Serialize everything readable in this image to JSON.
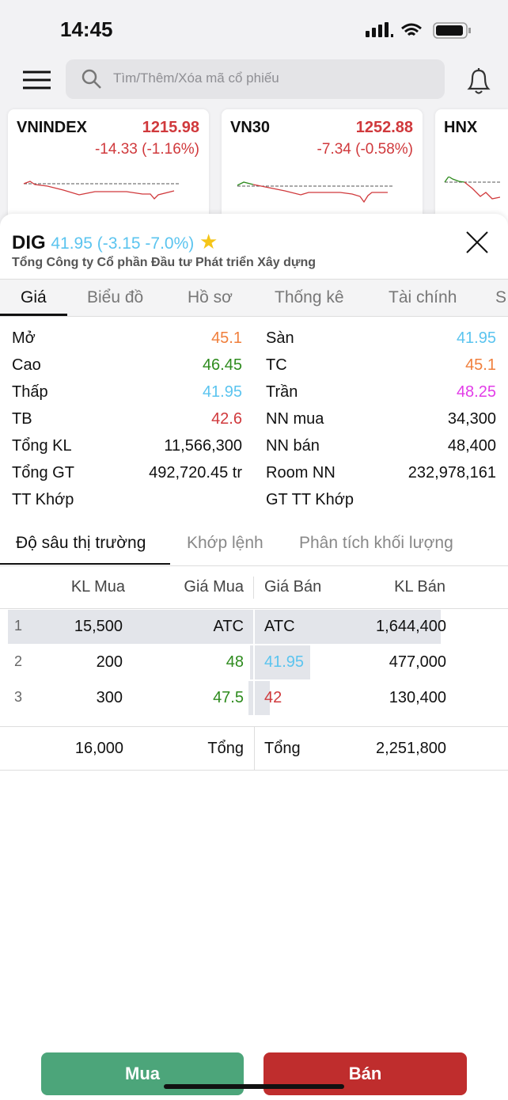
{
  "status": {
    "time": "14:45"
  },
  "search": {
    "placeholder": "Tìm/Thêm/Xóa mã cổ phiếu"
  },
  "indices": [
    {
      "name": "VNINDEX",
      "price": "1215.98",
      "change": "-14.33 (-1.16%)"
    },
    {
      "name": "VN30",
      "price": "1252.88",
      "change": "-7.34 (-0.58%)"
    },
    {
      "name": "HNX"
    }
  ],
  "stock": {
    "symbol": "DIG",
    "quote": "41.95 (-3.15 -7.0%)",
    "company": "Tổng Công ty Cổ phần Đầu tư Phát triển Xây dựng"
  },
  "tabs": [
    "Giá",
    "Biểu đồ",
    "Hồ sơ",
    "Thống kê",
    "Tài chính",
    "S"
  ],
  "info_left": [
    {
      "label": "Mở",
      "value": "45.1",
      "color": "#f07f3c"
    },
    {
      "label": "Cao",
      "value": "46.45",
      "color": "#2e8b1e"
    },
    {
      "label": "Thấp",
      "value": "41.95",
      "color": "#5bc4ef"
    },
    {
      "label": "TB",
      "value": "42.6",
      "color": "#d0393c"
    },
    {
      "label": "Tổng KL",
      "value": "11,566,300",
      "color": "#111"
    },
    {
      "label": "Tổng GT",
      "value": "492,720.45 tr",
      "color": "#111"
    },
    {
      "label": "TT Khớp",
      "value": "",
      "color": "#111"
    }
  ],
  "info_right": [
    {
      "label": "Sàn",
      "value": "41.95",
      "color": "#5bc4ef"
    },
    {
      "label": "TC",
      "value": "45.1",
      "color": "#f07f3c"
    },
    {
      "label": "Trần",
      "value": "48.25",
      "color": "#e23de8"
    },
    {
      "label": "NN mua",
      "value": "34,300",
      "color": "#111"
    },
    {
      "label": "NN bán",
      "value": "48,400",
      "color": "#111"
    },
    {
      "label": "Room NN",
      "value": "232,978,161",
      "color": "#111"
    },
    {
      "label": "GT TT Khớp",
      "value": "",
      "color": "#111"
    }
  ],
  "depth_tabs": [
    "Độ sâu thị trường",
    "Khớp lệnh",
    "Phân tích khối lượng"
  ],
  "depth": {
    "headers": [
      "KL Mua",
      "Giá Mua",
      "Giá Bán",
      "KL Bán"
    ],
    "rows": [
      {
        "n": "1",
        "kl_mua": "15,500",
        "gia_mua": "ATC",
        "gia_ban": "ATC",
        "kl_ban": "1,644,400",
        "buy_color": "#111",
        "sell_color": "#111"
      },
      {
        "n": "2",
        "kl_mua": "200",
        "gia_mua": "48",
        "gia_ban": "41.95",
        "kl_ban": "477,000",
        "buy_color": "#2e8b1e",
        "sell_color": "#5bc4ef"
      },
      {
        "n": "3",
        "kl_mua": "300",
        "gia_mua": "47.5",
        "gia_ban": "42",
        "kl_ban": "130,400",
        "buy_color": "#2e8b1e",
        "sell_color": "#d0393c"
      }
    ],
    "total_buy": "16,000",
    "total_label": "Tổng",
    "total_sell": "2,251,800"
  },
  "actions": {
    "buy": "Mua",
    "sell": "Bán",
    "buy_color": "#4ca57a",
    "sell_color": "#bf2d2d"
  }
}
